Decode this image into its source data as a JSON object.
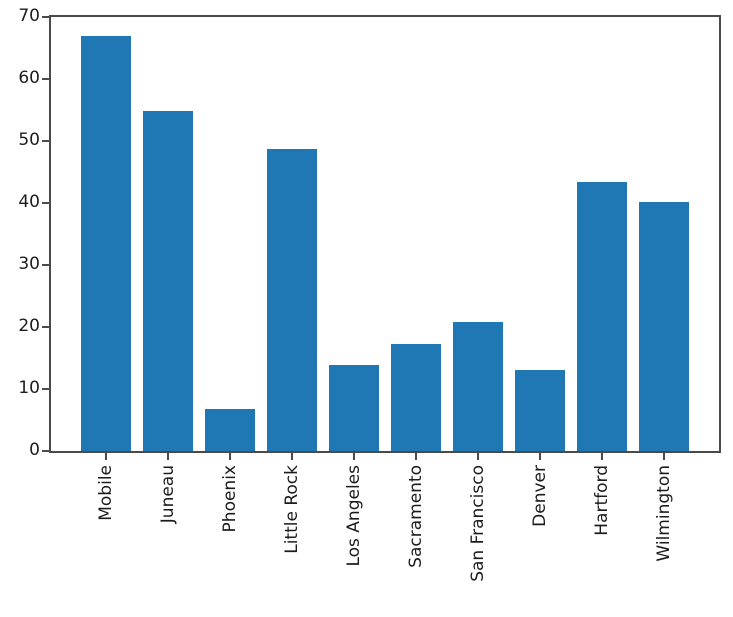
{
  "chart_data": {
    "type": "bar",
    "categories": [
      "Mobile",
      "Juneau",
      "Phoenix",
      "Little Rock",
      "Los Angeles",
      "Sacramento",
      "San Francisco",
      "Denver",
      "Hartford",
      "Wilmington"
    ],
    "values": [
      67.0,
      54.8,
      6.8,
      48.7,
      13.9,
      17.2,
      20.8,
      13.1,
      43.4,
      40.2
    ],
    "title": "",
    "xlabel": "",
    "ylabel": "",
    "ylim": [
      0,
      70
    ],
    "yticks": [
      0,
      10,
      20,
      30,
      40,
      50,
      60,
      70
    ],
    "xlim": [
      -0.89,
      9.89
    ],
    "bar_width_frac": 0.8,
    "x_tick_rotation_deg": 90,
    "grid": false,
    "legend": false,
    "colors": {
      "bar": "#1f77b4",
      "spine": "#4a4a4a",
      "tick": "#4a4a4a",
      "text": "#1c1c1c",
      "background": "#ffffff"
    }
  }
}
